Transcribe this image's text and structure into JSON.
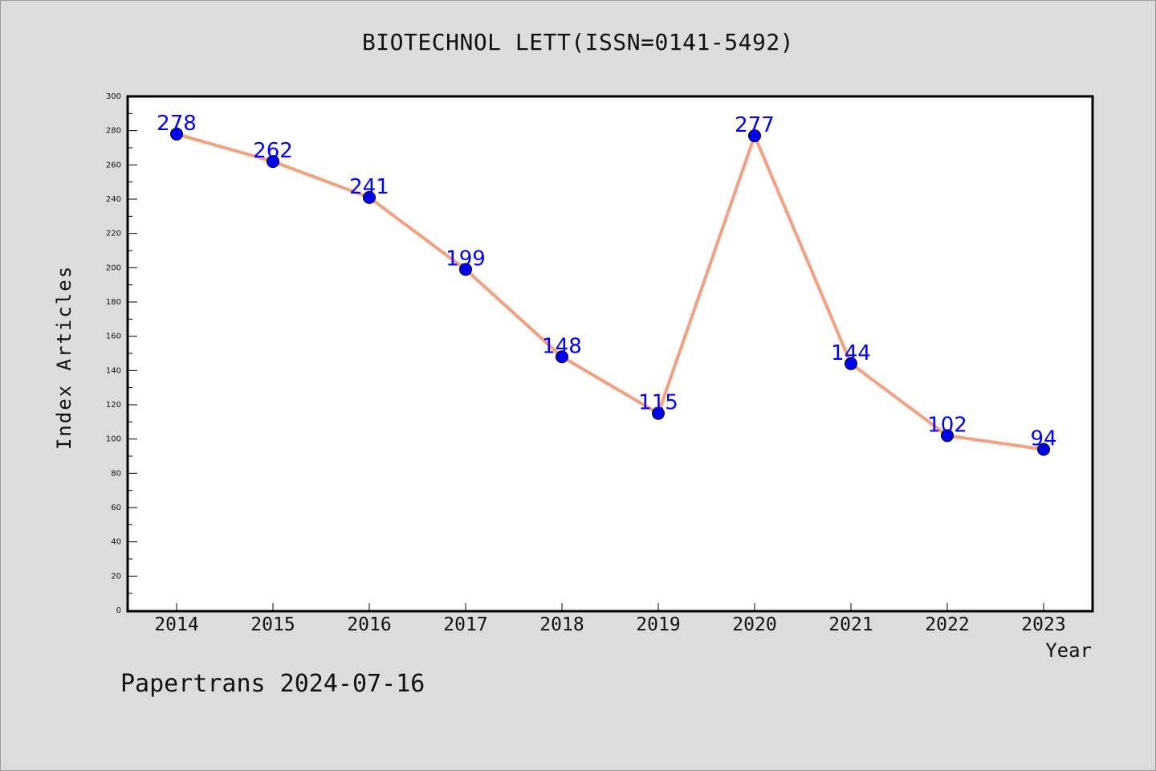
{
  "chart_data": {
    "type": "line",
    "title": "BIOTECHNOL LETT(ISSN=0141-5492)",
    "xlabel": "Year",
    "ylabel": "Index Articles",
    "categories": [
      "2014",
      "2015",
      "2016",
      "2017",
      "2018",
      "2019",
      "2020",
      "2021",
      "2022",
      "2023"
    ],
    "series": [
      {
        "values": [
          278,
          262,
          241,
          199,
          148,
          115,
          277,
          144,
          102,
          94
        ],
        "line_color": "#f4a080",
        "marker_color": "#0000ee",
        "label_color": "#0000ff"
      }
    ],
    "ylim": [
      0,
      300
    ],
    "yticks": [
      "0",
      "20",
      "40",
      "60",
      "80",
      "100",
      "120",
      "140",
      "160",
      "180",
      "200",
      "220",
      "240",
      "260",
      "280",
      "300"
    ],
    "grid": false,
    "data_labels": true
  },
  "footer": "Papertrans 2024-07-16",
  "colors": {
    "background": "#dcdcdc",
    "plot_background": "#ffffff",
    "axis": "#000000"
  }
}
